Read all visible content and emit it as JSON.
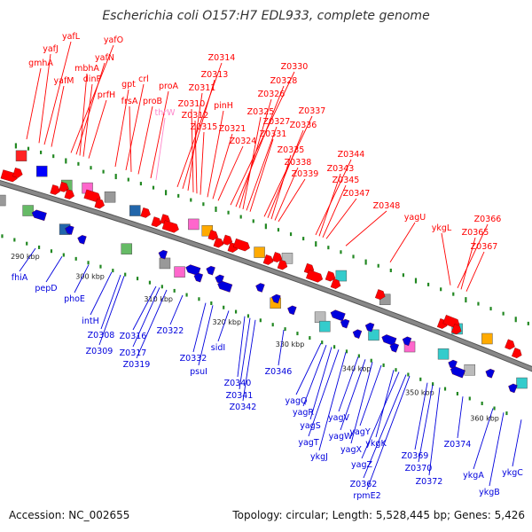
{
  "title": "Escherichia coli O157:H7 EDL933, complete genome",
  "footer": {
    "accession": "Accession: NC_002655",
    "summary": "Topology: circular; Length: 5,528,445 bp; Genes: 5,426"
  },
  "colors": {
    "forward": "#ff0000",
    "reverse": "#0000dd",
    "rna": "#ff88cc",
    "backbone": "#888888",
    "tick": "#228822"
  },
  "kbp_ticks": [
    "290 kbp",
    "300 kbp",
    "310 kbp",
    "320 kbp",
    "330 kbp",
    "340 kbp",
    "350 kbp",
    "360 kbp"
  ],
  "top_genes": [
    {
      "name": "gmhA",
      "kind": "cds"
    },
    {
      "name": "yafJ",
      "kind": "cds"
    },
    {
      "name": "yafL",
      "kind": "cds"
    },
    {
      "name": "yafM",
      "kind": "cds"
    },
    {
      "name": "yafO",
      "kind": "cds"
    },
    {
      "name": "yafN",
      "kind": "cds"
    },
    {
      "name": "mbhA",
      "kind": "cds"
    },
    {
      "name": "dinP",
      "kind": "cds"
    },
    {
      "name": "prfH",
      "kind": "cds"
    },
    {
      "name": "gpt",
      "kind": "cds"
    },
    {
      "name": "crl",
      "kind": "cds"
    },
    {
      "name": "frsA",
      "kind": "cds"
    },
    {
      "name": "proB",
      "kind": "cds"
    },
    {
      "name": "proA",
      "kind": "cds"
    },
    {
      "name": "thrW",
      "kind": "rna"
    },
    {
      "name": "Z0314",
      "kind": "cds"
    },
    {
      "name": "Z0313",
      "kind": "cds"
    },
    {
      "name": "Z0311",
      "kind": "cds"
    },
    {
      "name": "Z0310",
      "kind": "cds"
    },
    {
      "name": "Z0312",
      "kind": "cds"
    },
    {
      "name": "Z0315",
      "kind": "cds"
    },
    {
      "name": "pinH",
      "kind": "cds"
    },
    {
      "name": "Z0321",
      "kind": "cds"
    },
    {
      "name": "Z0324",
      "kind": "cds"
    },
    {
      "name": "Z0330",
      "kind": "cds"
    },
    {
      "name": "Z0328",
      "kind": "cds"
    },
    {
      "name": "Z0326",
      "kind": "cds"
    },
    {
      "name": "Z0325",
      "kind": "cds"
    },
    {
      "name": "Z0327",
      "kind": "cds"
    },
    {
      "name": "Z0331",
      "kind": "cds"
    },
    {
      "name": "Z0337",
      "kind": "cds"
    },
    {
      "name": "Z0336",
      "kind": "cds"
    },
    {
      "name": "Z0335",
      "kind": "cds"
    },
    {
      "name": "Z0338",
      "kind": "cds"
    },
    {
      "name": "Z0339",
      "kind": "cds"
    },
    {
      "name": "Z0344",
      "kind": "cds"
    },
    {
      "name": "Z0343",
      "kind": "cds"
    },
    {
      "name": "Z0345",
      "kind": "cds"
    },
    {
      "name": "Z0347",
      "kind": "cds"
    },
    {
      "name": "Z0348",
      "kind": "cds"
    },
    {
      "name": "yagU",
      "kind": "cds"
    },
    {
      "name": "ykgL",
      "kind": "cds"
    },
    {
      "name": "Z0366",
      "kind": "cds"
    },
    {
      "name": "Z0365",
      "kind": "cds"
    },
    {
      "name": "Z0367",
      "kind": "cds"
    }
  ],
  "bottom_genes": [
    {
      "name": "fhiA",
      "kind": "cds"
    },
    {
      "name": "pepD",
      "kind": "cds"
    },
    {
      "name": "phoE",
      "kind": "cds"
    },
    {
      "name": "intH",
      "kind": "cds"
    },
    {
      "name": "Z0308",
      "kind": "cds"
    },
    {
      "name": "Z0309",
      "kind": "cds"
    },
    {
      "name": "Z0316",
      "kind": "cds"
    },
    {
      "name": "Z0317",
      "kind": "cds"
    },
    {
      "name": "Z0319",
      "kind": "cds"
    },
    {
      "name": "Z0322",
      "kind": "cds"
    },
    {
      "name": "Z0332",
      "kind": "cds"
    },
    {
      "name": "psuI",
      "kind": "cds"
    },
    {
      "name": "sidI",
      "kind": "cds"
    },
    {
      "name": "Z0340",
      "kind": "cds"
    },
    {
      "name": "Z0341",
      "kind": "cds"
    },
    {
      "name": "Z0342",
      "kind": "cds"
    },
    {
      "name": "Z0346",
      "kind": "cds"
    },
    {
      "name": "yagQ",
      "kind": "cds"
    },
    {
      "name": "yagR",
      "kind": "cds"
    },
    {
      "name": "yagS",
      "kind": "cds"
    },
    {
      "name": "yagT",
      "kind": "cds"
    },
    {
      "name": "ykgJ",
      "kind": "cds"
    },
    {
      "name": "yagV",
      "kind": "cds"
    },
    {
      "name": "yagW",
      "kind": "cds"
    },
    {
      "name": "yagX",
      "kind": "cds"
    },
    {
      "name": "yagY",
      "kind": "cds"
    },
    {
      "name": "ykgK",
      "kind": "cds"
    },
    {
      "name": "yagZ",
      "kind": "cds"
    },
    {
      "name": "Z0362",
      "kind": "cds"
    },
    {
      "name": "rpmE2",
      "kind": "cds"
    },
    {
      "name": "Z0369",
      "kind": "cds"
    },
    {
      "name": "Z0370",
      "kind": "cds"
    },
    {
      "name": "Z0372",
      "kind": "cds"
    },
    {
      "name": "Z0374",
      "kind": "cds"
    },
    {
      "name": "ykgA",
      "kind": "cds"
    },
    {
      "name": "ykgB",
      "kind": "cds"
    },
    {
      "name": "ykgC",
      "kind": "cds"
    }
  ]
}
